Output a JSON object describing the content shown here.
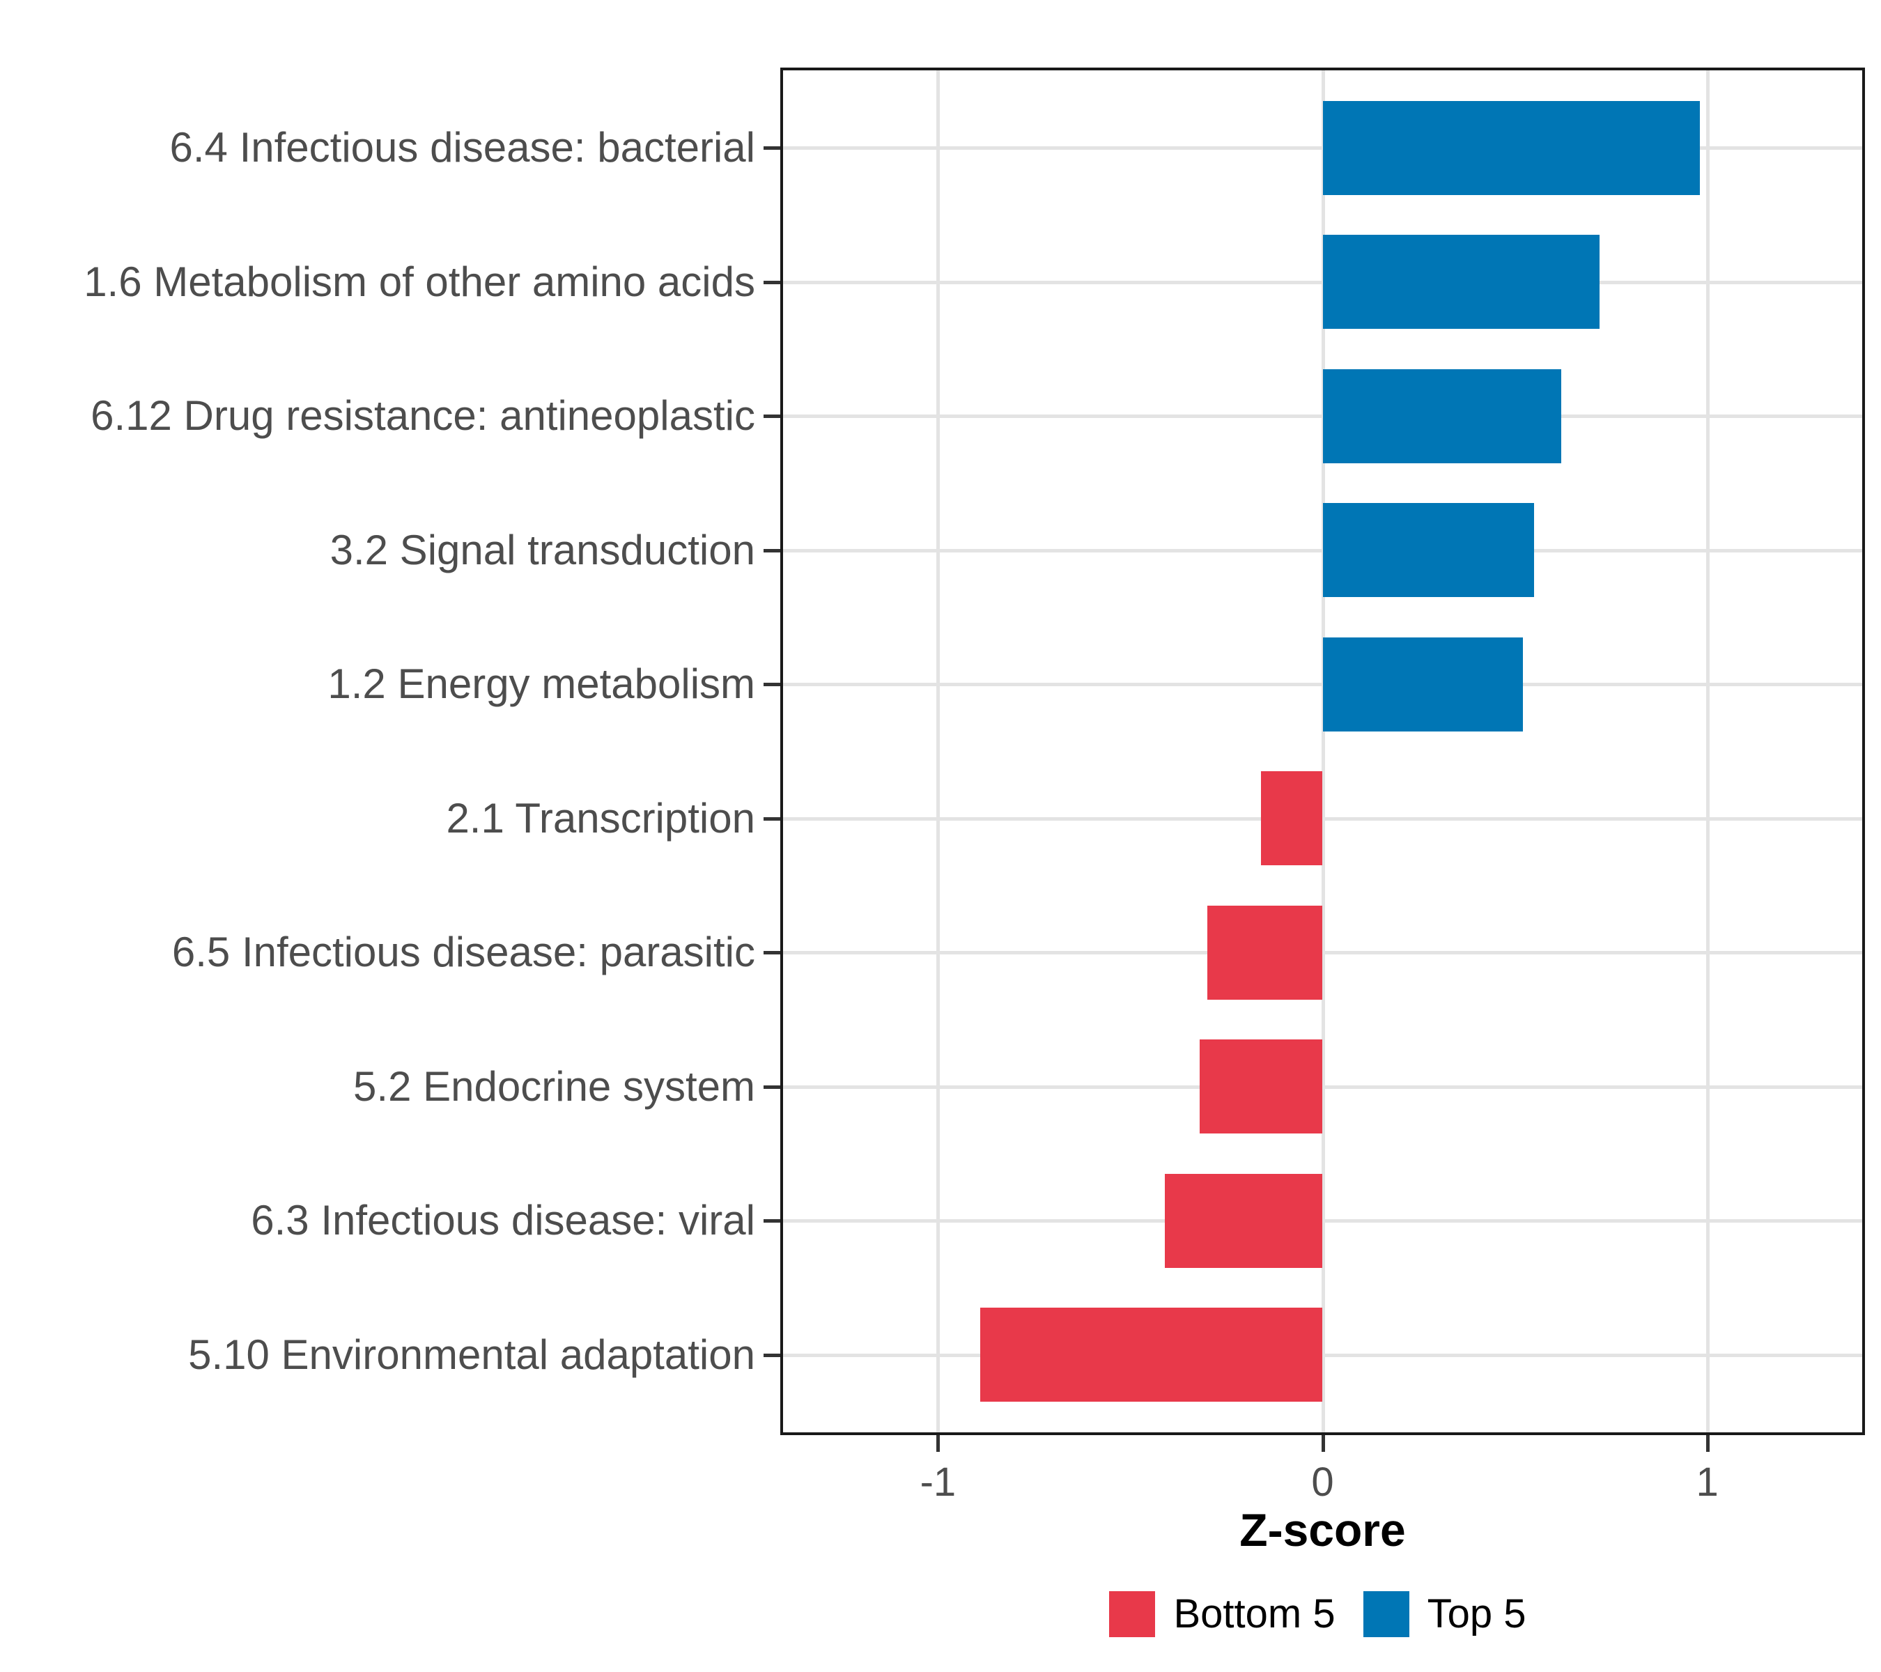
{
  "chart_data": {
    "type": "bar",
    "orientation": "horizontal",
    "title": "",
    "xlabel": "Z-score",
    "categories": [
      "6.4 Infectious disease: bacterial",
      "1.6 Metabolism of other amino acids",
      "6.12 Drug resistance: antineoplastic",
      "3.2 Signal transduction",
      "1.2 Energy metabolism",
      "2.1 Transcription",
      "6.5 Infectious disease: parasitic",
      "5.2 Endocrine system",
      "6.3 Infectious disease: viral",
      "5.10 Environmental adaptation"
    ],
    "values": [
      0.98,
      0.72,
      0.62,
      0.55,
      0.52,
      -0.16,
      -0.3,
      -0.32,
      -0.41,
      -0.89
    ],
    "groups": [
      "Top 5",
      "Top 5",
      "Top 5",
      "Top 5",
      "Top 5",
      "Bottom 5",
      "Bottom 5",
      "Bottom 5",
      "Bottom 5",
      "Bottom 5"
    ],
    "colors": {
      "positive": "#0076b5",
      "negative": "#e8394a"
    },
    "x_ticks": [
      {
        "value": -1,
        "label": "-1"
      },
      {
        "value": 0,
        "label": "0"
      },
      {
        "value": 1,
        "label": "1"
      }
    ],
    "xlim": [
      -1.41,
      1.41
    ],
    "grid": true,
    "legend": {
      "position": "bottom",
      "entries": [
        {
          "label": "Bottom 5",
          "color": "#e8394a"
        },
        {
          "label": "Top 5",
          "color": "#0076b5"
        }
      ]
    }
  }
}
